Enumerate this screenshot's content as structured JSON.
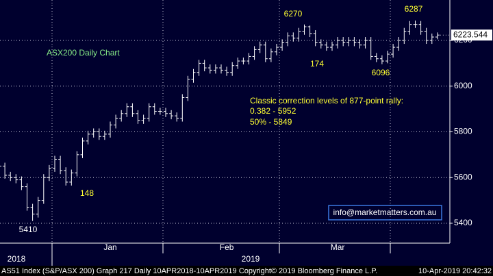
{
  "chart_data": {
    "type": "ohlc",
    "title": "ASX200 Daily Chart",
    "categories": [
      null,
      null,
      null,
      null,
      null,
      null,
      null,
      null,
      null,
      null,
      "Jan",
      null,
      null,
      null,
      null,
      null,
      null,
      null,
      null,
      null,
      null,
      null,
      null,
      null,
      null,
      null,
      null,
      null,
      null,
      null,
      null,
      "Feb",
      null,
      null,
      null,
      null,
      null,
      null,
      null,
      null,
      null,
      null,
      null,
      null,
      null,
      null,
      null,
      null,
      null,
      null,
      null,
      "Mar",
      null,
      null,
      null,
      null,
      null,
      null,
      null,
      null,
      null,
      null,
      null,
      null,
      null,
      null,
      null,
      null,
      null,
      null,
      null,
      null,
      null,
      null,
      null,
      null,
      null,
      null,
      null,
      null
    ],
    "year_labels": [
      "2018",
      "2019"
    ],
    "open": [
      5660,
      5650,
      5610,
      5600,
      5590,
      5560,
      5470,
      5440,
      5500,
      5600,
      5640,
      5680,
      5630,
      5580,
      5620,
      5700,
      5760,
      5790,
      5800,
      5780,
      5790,
      5830,
      5860,
      5880,
      5910,
      5880,
      5850,
      5860,
      5910,
      5890,
      5890,
      5880,
      5870,
      5860,
      5950,
      6030,
      6060,
      6100,
      6080,
      6070,
      6080,
      6070,
      6060,
      6090,
      6110,
      6110,
      6130,
      6160,
      6180,
      6120,
      6150,
      6170,
      6190,
      6220,
      6210,
      6240,
      6260,
      6230,
      6190,
      6180,
      6170,
      6180,
      6200,
      6190,
      6200,
      6190,
      6180,
      6200,
      6130,
      6120,
      6110,
      6140,
      6170,
      6200,
      6240,
      6270,
      6270,
      6240,
      6200,
      6215
    ],
    "high": [
      5675,
      5665,
      5625,
      5615,
      5605,
      5575,
      5485,
      5515,
      5615,
      5655,
      5695,
      5695,
      5645,
      5635,
      5715,
      5775,
      5805,
      5815,
      5815,
      5805,
      5845,
      5875,
      5895,
      5925,
      5925,
      5895,
      5875,
      5925,
      5925,
      5905,
      5905,
      5895,
      5885,
      5965,
      6045,
      6075,
      6115,
      6115,
      6095,
      6095,
      6095,
      6085,
      6105,
      6125,
      6125,
      6145,
      6175,
      6195,
      6195,
      6165,
      6185,
      6205,
      6235,
      6235,
      6255,
      6270,
      6265,
      6245,
      6205,
      6195,
      6195,
      6215,
      6215,
      6215,
      6215,
      6205,
      6215,
      6215,
      6145,
      6135,
      6155,
      6185,
      6215,
      6255,
      6285,
      6287,
      6285,
      6255,
      6230,
      6235
    ],
    "low": [
      5635,
      5595,
      5585,
      5575,
      5545,
      5455,
      5410,
      5425,
      5485,
      5585,
      5625,
      5615,
      5565,
      5565,
      5605,
      5685,
      5745,
      5775,
      5765,
      5765,
      5775,
      5815,
      5845,
      5865,
      5865,
      5835,
      5835,
      5845,
      5875,
      5875,
      5865,
      5855,
      5845,
      5845,
      5935,
      6015,
      6045,
      6065,
      6055,
      6055,
      6055,
      6045,
      6045,
      6075,
      6095,
      6095,
      6115,
      6145,
      6105,
      6105,
      6135,
      6155,
      6175,
      6195,
      6195,
      6225,
      6215,
      6175,
      6165,
      6155,
      6155,
      6165,
      6175,
      6175,
      6175,
      6165,
      6165,
      6115,
      6105,
      6096,
      6100,
      6125,
      6155,
      6185,
      6225,
      6255,
      6225,
      6185,
      6185,
      6205
    ],
    "close": [
      5650,
      5610,
      5600,
      5590,
      5560,
      5470,
      5440,
      5500,
      5600,
      5640,
      5680,
      5630,
      5580,
      5620,
      5700,
      5760,
      5790,
      5800,
      5780,
      5790,
      5830,
      5860,
      5880,
      5910,
      5880,
      5850,
      5860,
      5910,
      5890,
      5890,
      5880,
      5870,
      5860,
      5950,
      6030,
      6060,
      6100,
      6080,
      6070,
      6080,
      6070,
      6060,
      6090,
      6110,
      6110,
      6130,
      6160,
      6180,
      6120,
      6150,
      6170,
      6190,
      6220,
      6210,
      6240,
      6260,
      6230,
      6190,
      6180,
      6170,
      6180,
      6200,
      6190,
      6200,
      6190,
      6180,
      6200,
      6130,
      6120,
      6110,
      6140,
      6170,
      6200,
      6240,
      6270,
      6270,
      6240,
      6200,
      6215,
      6223.544
    ],
    "color": "#ffffff",
    "ylim": [
      5313,
      6377
    ],
    "yticks": [
      5400,
      5600,
      5800,
      6000,
      6200
    ],
    "grid": true,
    "annotations": [
      "6270",
      "6287",
      "174",
      "6096",
      "148",
      "5410"
    ],
    "note_lines": [
      "Classic correction levels of 877-point rally:",
      "0.382 - 5952",
      "50% - 5849"
    ],
    "contact": "info@marketmatters.com.au",
    "footer": {
      "left": "AS51 Index (S&P/ASX 200) Graph 217  Daily 10APR2018-10APR2019",
      "center": "Copyright© 2019 Bloomberg Finance L.P.",
      "right": "10-Apr-2019 20:42:32"
    }
  }
}
